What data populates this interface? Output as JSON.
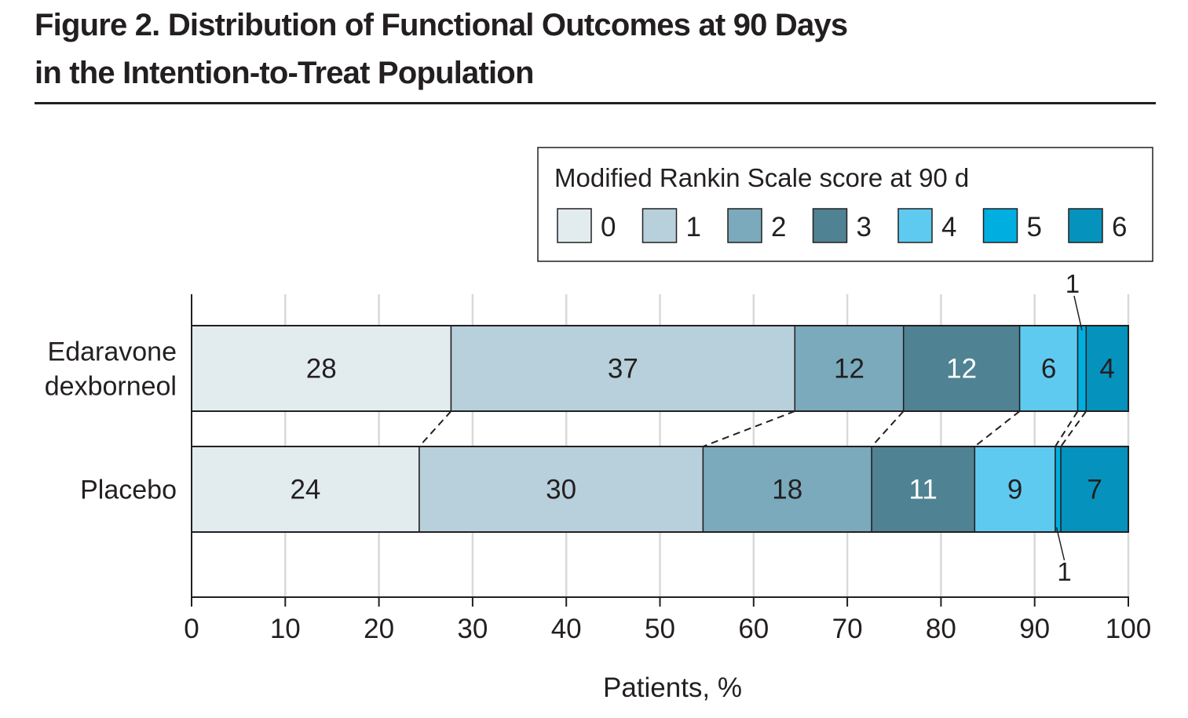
{
  "figure": {
    "title_line1": "Figure 2. Distribution of Functional Outcomes at 90 Days",
    "title_line2": "in the Intention-to-Treat Population"
  },
  "chart_data": {
    "type": "bar",
    "orientation": "horizontal",
    "stacked": true,
    "categories": [
      "Edaravone dexborneol",
      "Placebo"
    ],
    "category_label_lines": [
      [
        "Edaravone",
        "dexborneol"
      ],
      [
        "Placebo"
      ]
    ],
    "legend_title": "Modified Rankin Scale score at 90 d",
    "legend_placement": "top-right",
    "series": [
      {
        "name": "0",
        "color": "#e2ecef",
        "values": [
          27.7,
          24.3
        ]
      },
      {
        "name": "1",
        "color": "#b7d0db",
        "values": [
          36.7,
          30.3
        ]
      },
      {
        "name": "2",
        "color": "#7aaabb",
        "values": [
          11.6,
          18.0
        ]
      },
      {
        "name": "3",
        "color": "#4f8293",
        "values": [
          12.4,
          11.0
        ]
      },
      {
        "name": "4",
        "color": "#5ecaf0",
        "values": [
          6.2,
          8.6
        ]
      },
      {
        "name": "5",
        "color": "#00aee0",
        "values": [
          0.9,
          0.6
        ]
      },
      {
        "name": "6",
        "color": "#0593bd",
        "values": [
          4.5,
          7.2
        ]
      }
    ],
    "data_labels": [
      [
        "28",
        "37",
        "12",
        "12",
        "6",
        "",
        "4"
      ],
      [
        "24",
        "30",
        "18",
        "11",
        "9",
        "",
        "7"
      ]
    ],
    "data_label_colors": [
      [
        "#231f20",
        "#231f20",
        "#231f20",
        "#ffffff",
        "#231f20",
        "",
        "#231f20"
      ],
      [
        "#231f20",
        "#231f20",
        "#231f20",
        "#ffffff",
        "#231f20",
        "",
        "#231f20"
      ]
    ],
    "callouts": [
      {
        "category": 0,
        "series": "5",
        "label": "1",
        "position": "above"
      },
      {
        "category": 1,
        "series": "5",
        "label": "1",
        "position": "below"
      }
    ],
    "xlabel": "Patients, %",
    "xlim": [
      0,
      100
    ],
    "xticks": [
      0,
      10,
      20,
      30,
      40,
      50,
      60,
      70,
      80,
      90,
      100
    ],
    "grid": true,
    "connector_lines": "dashed lines between matching category boundaries"
  }
}
